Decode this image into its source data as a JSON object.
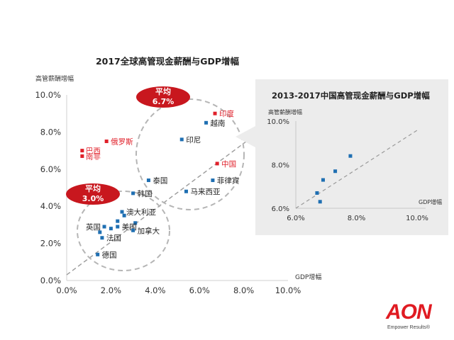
{
  "chart_data": [
    {
      "type": "scatter",
      "title": "2017全球高管现金薪酬与GDP增幅",
      "xlabel": "GDP增幅",
      "ylabel": "高管薪酬增幅",
      "xlim": [
        0,
        10
      ],
      "ylim": [
        0,
        10
      ],
      "x_ticks": [
        "0.0%",
        "2.0%",
        "4.0%",
        "6.0%",
        "8.0%",
        "10.0%"
      ],
      "y_ticks": [
        "0.0%",
        "2.0%",
        "4.0%",
        "6.0%",
        "8.0%",
        "10.0%"
      ],
      "grid": false,
      "reference_line": "diagonal y = x",
      "colors": {
        "blue": "#1f6fb2",
        "red": "#e0202a",
        "badge": "#c8171e",
        "circle": "#bdbdbd"
      },
      "points": [
        {
          "label": "印度",
          "x": 6.7,
          "y": 9.0,
          "color": "red"
        },
        {
          "label": "越南",
          "x": 6.3,
          "y": 8.5,
          "color": "blue"
        },
        {
          "label": "俄罗斯",
          "x": 1.8,
          "y": 7.5,
          "color": "red"
        },
        {
          "label": "印尼",
          "x": 5.2,
          "y": 7.6,
          "color": "blue"
        },
        {
          "label": "巴西",
          "x": 0.7,
          "y": 7.0,
          "color": "red"
        },
        {
          "label": "南非",
          "x": 0.7,
          "y": 6.7,
          "color": "red"
        },
        {
          "label": "中国",
          "x": 6.8,
          "y": 6.3,
          "color": "red"
        },
        {
          "label": "泰国",
          "x": 3.7,
          "y": 5.4,
          "color": "blue"
        },
        {
          "label": "菲律宾",
          "x": 6.6,
          "y": 5.4,
          "color": "blue"
        },
        {
          "label": "韩国",
          "x": 3.0,
          "y": 4.7,
          "color": "blue"
        },
        {
          "label": "马来西亚",
          "x": 5.4,
          "y": 4.8,
          "color": "blue"
        },
        {
          "label": "澳大利亚",
          "x": 2.5,
          "y": 3.7,
          "color": "blue"
        },
        {
          "label": "",
          "x": 2.6,
          "y": 3.5,
          "color": "blue"
        },
        {
          "label": "",
          "x": 2.3,
          "y": 3.2,
          "color": "blue"
        },
        {
          "label": "",
          "x": 3.1,
          "y": 3.1,
          "color": "blue"
        },
        {
          "label": "英国",
          "x": 1.7,
          "y": 2.9,
          "color": "blue"
        },
        {
          "label": "",
          "x": 2.0,
          "y": 2.8,
          "color": "blue"
        },
        {
          "label": "美国",
          "x": 2.3,
          "y": 2.9,
          "color": "blue"
        },
        {
          "label": "加拿大",
          "x": 3.0,
          "y": 2.7,
          "color": "blue"
        },
        {
          "label": "",
          "x": 1.5,
          "y": 2.6,
          "color": "blue"
        },
        {
          "label": "法国",
          "x": 1.6,
          "y": 2.3,
          "color": "blue"
        },
        {
          "label": "德国",
          "x": 1.4,
          "y": 1.4,
          "color": "blue"
        }
      ],
      "averages": [
        {
          "label": "平均",
          "value": "6.7%"
        },
        {
          "label": "平均",
          "value": "3.0%"
        }
      ]
    },
    {
      "type": "scatter",
      "title": "2013-2017中国高管现金薪酬与GDP增幅",
      "xlabel": "GDP增幅",
      "ylabel": "高管薪酬增幅",
      "xlim": [
        6,
        10
      ],
      "ylim": [
        6,
        10
      ],
      "x_ticks": [
        "6.0%",
        "8.0%",
        "10.0%"
      ],
      "y_ticks": [
        "6.0%",
        "8.0%",
        "10.0%"
      ],
      "grid": false,
      "reference_line": "diagonal",
      "points": [
        {
          "x": 7.8,
          "y": 8.4
        },
        {
          "x": 7.3,
          "y": 7.7
        },
        {
          "x": 6.9,
          "y": 7.3
        },
        {
          "x": 6.7,
          "y": 6.7
        },
        {
          "x": 6.8,
          "y": 6.3
        }
      ]
    }
  ],
  "logo": {
    "wordmark": "AON",
    "tagline": "Empower Results®"
  }
}
